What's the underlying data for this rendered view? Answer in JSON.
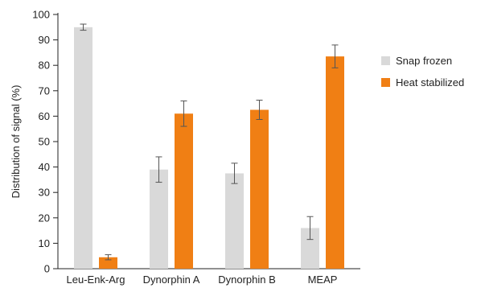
{
  "chart_data": {
    "type": "bar",
    "title": "",
    "xlabel": "",
    "ylabel": "Distribution of signal (%)",
    "ylim": [
      0,
      100
    ],
    "yticks": [
      0,
      10,
      20,
      30,
      40,
      50,
      60,
      70,
      80,
      90,
      100
    ],
    "grid": false,
    "legend_position": "top-right",
    "categories": [
      "Leu-Enk-Arg",
      "Dynorphin A",
      "Dynorphin B",
      "MEAP"
    ],
    "series": [
      {
        "name": "Snap frozen",
        "color": "#d9d9d9",
        "values": [
          95,
          39,
          37.5,
          16
        ],
        "error": [
          1.2,
          5,
          4,
          4.5
        ]
      },
      {
        "name": "Heat stabilized",
        "color": "#f07f14",
        "values": [
          4.5,
          61,
          62.5,
          83.5
        ],
        "error": [
          1,
          5,
          3.8,
          4.5
        ]
      }
    ]
  }
}
